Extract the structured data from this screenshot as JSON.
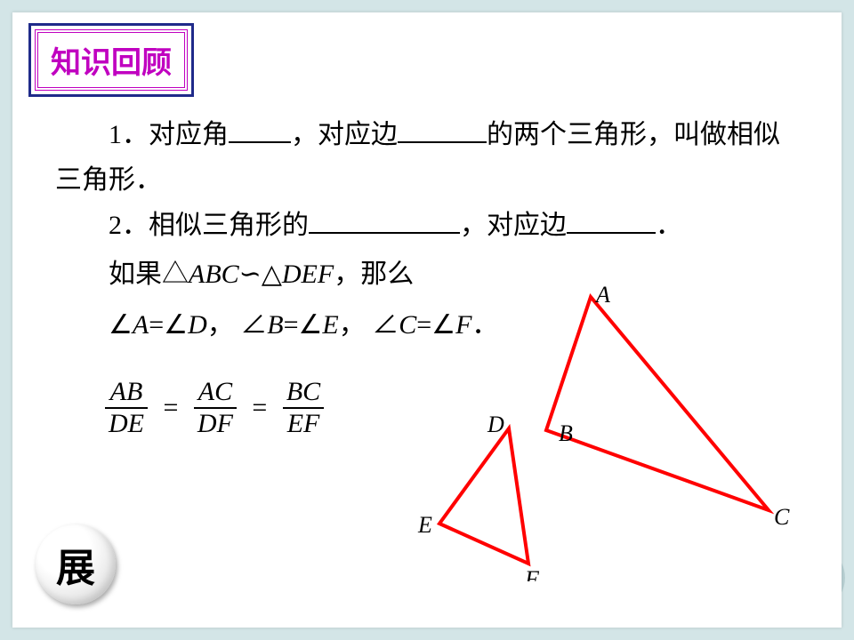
{
  "title": "知识回顾",
  "line1_a": "1．对应角",
  "line1_b": "，对应边",
  "line1_c": "的两个三角形，叫做相似三角形．",
  "line2_a": "2．相似三角形的",
  "line2_b": "，对应边",
  "line2_c": "．",
  "line3_a": "如果△",
  "line3_abc": "ABC",
  "line3_sim": "∽",
  "line3_tri2": "△",
  "line3_def": "DEF",
  "line3_b": "，那么",
  "angles_a1": "∠",
  "angA": "A",
  "eq": "=",
  "angD": "D",
  "comma_cn": "，",
  "angB": "B",
  "angE": "E",
  "angC": "C",
  "angF": "F",
  "period_cn": "．",
  "ratio": {
    "AB": "AB",
    "DE": "DE",
    "AC": "AC",
    "DF": "DF",
    "BC": "BC",
    "EF": "EF"
  },
  "figure": {
    "big": {
      "A": [
        200,
        20
      ],
      "B": [
        150,
        170
      ],
      "C": [
        400,
        260
      ],
      "stroke": "#ff0000",
      "stroke_width": 4
    },
    "small": {
      "D": [
        108,
        168
      ],
      "E": [
        30,
        275
      ],
      "F": [
        130,
        320
      ],
      "stroke": "#ff0000",
      "stroke_width": 4
    },
    "labelA": "A",
    "labelB": "B",
    "labelC": "C",
    "labelD": "D",
    "labelE": "E",
    "labelF": "F"
  },
  "badge": "展",
  "colors": {
    "bg": "#d3e5e7",
    "content": "#ffffff",
    "title_outer": "#1f2a8a",
    "title_inner": "#c000c0",
    "stroke": "#ff0000"
  }
}
